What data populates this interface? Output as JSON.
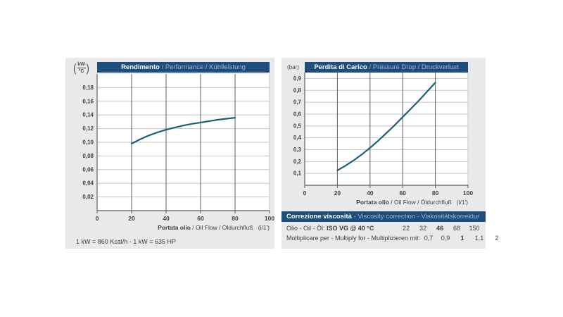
{
  "colors": {
    "navy": "#1d4e7c",
    "title_secondary": "#9cb6ce",
    "panel_bg": "#e8e9ea",
    "plot_bg": "#ffffff",
    "grid_light": "#c4c5c7",
    "grid_dark": "#5a5b5e",
    "curve": "#1a607a",
    "text": "#3e3f42"
  },
  "left_panel": {
    "unit": {
      "numerator": "kW",
      "denominator": "°C"
    },
    "title": {
      "primary": "Rendimento",
      "secondary": " / Performance / Kühlleistung"
    },
    "x_axis_title": {
      "primary": "Portata olio",
      "secondary": " / Oil Flow / Öldurchfluß",
      "unit": "(l/1')"
    },
    "footnote": "1 kW = 860 Kcal/h  - 1 kW = 635 HP"
  },
  "right_panel": {
    "unit": "(bar)",
    "title": {
      "primary": "Perdita di Carico",
      "secondary": " / Pressure Drop / Druckverlust"
    },
    "x_axis_title": {
      "primary": "Portata olio",
      "secondary": " / Oil Flow / Öldurchfluß",
      "unit": "(l/1')"
    },
    "viscosity": {
      "header": {
        "primary": "Correzione viscosità",
        "secondary": " - Viscosity correction - Viskositätskorrektur"
      },
      "rows": [
        {
          "label_regular": "Olio - Oil - Öl: ",
          "label_bold": "ISO VG @ 40 °C",
          "values": [
            "22",
            "32",
            "46",
            "68",
            "150"
          ],
          "bold_index": 2
        },
        {
          "label_regular": "Moltiplicare per - Multiply for - Multiplizieren mit:",
          "label_bold": "",
          "values": [
            "0,7",
            "0,9",
            "1",
            "1,1",
            "2"
          ],
          "bold_index": 2
        }
      ]
    }
  },
  "chart_data": [
    {
      "type": "line",
      "title": "Rendimento / Performance / Kühlleistung",
      "xlabel": "Portata olio / Oil Flow / Öldurchfluß (l/1')",
      "ylabel": "kW/°C",
      "xlim": [
        0,
        100
      ],
      "ylim": [
        0,
        0.2
      ],
      "x_ticks": [
        0,
        20,
        40,
        60,
        80,
        100
      ],
      "x_tick_labels": [
        "0",
        "20",
        "40",
        "60",
        "80",
        "100"
      ],
      "x_grid": [
        20,
        40,
        60,
        80
      ],
      "y_ticks": [
        0.02,
        0.04,
        0.06,
        0.08,
        0.1,
        0.12,
        0.14,
        0.16,
        0.18
      ],
      "y_tick_labels": [
        "0,02",
        "0,04",
        "0,06",
        "0,08",
        "0,10",
        "0,12",
        "0,14",
        "0,16",
        "0,18"
      ],
      "grid": true,
      "legend": false,
      "series": [
        {
          "name": "cooling-performance",
          "points": [
            [
              20,
              0.098
            ],
            [
              25,
              0.1045
            ],
            [
              30,
              0.11
            ],
            [
              35,
              0.1145
            ],
            [
              40,
              0.1185
            ],
            [
              45,
              0.1215
            ],
            [
              50,
              0.1245
            ],
            [
              55,
              0.127
            ],
            [
              60,
              0.129
            ],
            [
              65,
              0.131
            ],
            [
              70,
              0.133
            ],
            [
              75,
              0.1345
            ],
            [
              80,
              0.136
            ]
          ]
        }
      ]
    },
    {
      "type": "line",
      "title": "Perdita di Carico / Pressure Drop / Druckverlust",
      "xlabel": "Portata olio / Oil Flow / Öldurchfluß (l/1')",
      "ylabel": "bar",
      "xlim": [
        0,
        100
      ],
      "ylim": [
        0,
        0.95
      ],
      "x_ticks": [
        0,
        20,
        40,
        60,
        80,
        100
      ],
      "x_tick_labels": [
        "0",
        "20",
        "40",
        "60",
        "80",
        "100"
      ],
      "x_grid": [
        20,
        40,
        60,
        80
      ],
      "y_ticks": [
        0.1,
        0.2,
        0.3,
        0.4,
        0.5,
        0.6,
        0.7,
        0.8,
        0.9
      ],
      "y_tick_labels": [
        "0,1",
        "0,2",
        "0,3",
        "0,4",
        "0,5",
        "0,6",
        "0,7",
        "0,8",
        "0,9"
      ],
      "grid": true,
      "legend": false,
      "series": [
        {
          "name": "pressure-drop",
          "points": [
            [
              20,
              0.125
            ],
            [
              25,
              0.165
            ],
            [
              30,
              0.21
            ],
            [
              35,
              0.26
            ],
            [
              40,
              0.315
            ],
            [
              45,
              0.375
            ],
            [
              50,
              0.44
            ],
            [
              55,
              0.505
            ],
            [
              60,
              0.575
            ],
            [
              65,
              0.645
            ],
            [
              70,
              0.715
            ],
            [
              75,
              0.79
            ],
            [
              80,
              0.865
            ]
          ]
        }
      ]
    }
  ]
}
